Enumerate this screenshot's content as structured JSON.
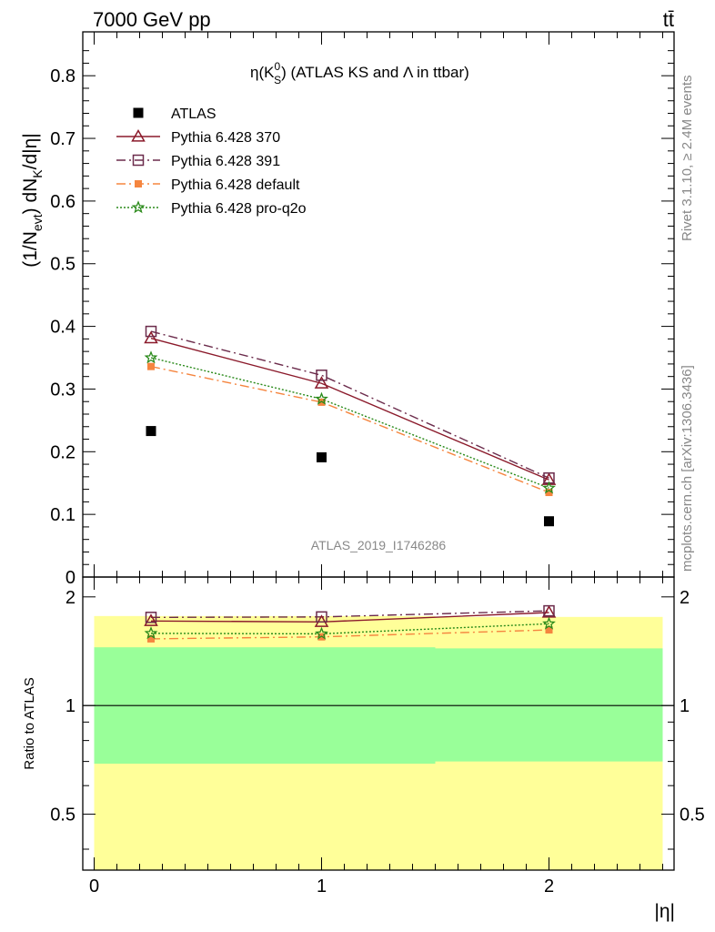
{
  "header": {
    "left_label": "7000 GeV pp",
    "right_label": "tt̄"
  },
  "side_labels": {
    "rivet": "Rivet 3.1.10, ≥ 2.4M events",
    "mcplots": "mcplots.cern.ch [arXiv:1306.3436]"
  },
  "watermark": "ATLAS_2019_I1746286",
  "chart_data": [
    {
      "type": "scatter",
      "title": "η(K⁰S) (ATLAS KS and Λ in ttbar)",
      "title_parts": {
        "main": "η(K",
        "sup": "0",
        "sub": "S",
        "rest": ") (ATLAS KS and Λ in ttbar)"
      },
      "ylabel": "(1/Nevt) dNK/d|η|",
      "ylabel_parts": {
        "a": "(1/N",
        "a_sub": "evt",
        "b": ") dN",
        "b_sub": "K",
        "c": "/d|η|"
      },
      "xlim": [
        -0.05,
        2.55
      ],
      "ylim": [
        0,
        0.87
      ],
      "yticks": [
        0,
        0.1,
        0.2,
        0.3,
        0.4,
        0.5,
        0.6,
        0.7,
        0.8
      ],
      "ytick_labels": [
        "0",
        "0.1",
        "0.2",
        "0.3",
        "0.4",
        "0.5",
        "0.6",
        "0.7",
        "0.8"
      ],
      "legend_position": "top-left",
      "x": [
        0.25,
        1.0,
        2.0
      ],
      "series": [
        {
          "name": "ATLAS",
          "values": [
            0.233,
            0.191,
            0.089
          ],
          "color": "#000000",
          "marker": "square",
          "line": "none"
        },
        {
          "name": "Pythia 6.428 370",
          "values": [
            0.381,
            0.309,
            0.155
          ],
          "color": "#8b1a2b",
          "marker": "triangle",
          "line": "solid"
        },
        {
          "name": "Pythia 6.428 391",
          "values": [
            0.392,
            0.322,
            0.158
          ],
          "color": "#6b2b4b",
          "marker": "open-square",
          "line": "dashdot"
        },
        {
          "name": "Pythia 6.428 default",
          "values": [
            0.336,
            0.279,
            0.135
          ],
          "color": "#f5853f",
          "marker": "filled-square",
          "line": "dashdot"
        },
        {
          "name": "Pythia 6.428 pro-q2o",
          "values": [
            0.35,
            0.284,
            0.142
          ],
          "color": "#2a8a1a",
          "marker": "star",
          "line": "dotted"
        }
      ]
    },
    {
      "type": "scatter",
      "xlabel": "|η|",
      "ylabel": "Ratio to ATLAS",
      "xlim": [
        -0.05,
        2.55
      ],
      "ylim": [
        0.35,
        2.27
      ],
      "xticks": [
        0,
        1,
        2
      ],
      "xtick_labels": [
        "0",
        "1",
        "2"
      ],
      "yticks": [
        0.5,
        1,
        2
      ],
      "ytick_labels": [
        "0.5",
        "1",
        "2"
      ],
      "bands": [
        {
          "x_from": 0.0,
          "x_to": 0.5,
          "yellow_low": 0.35,
          "yellow_high": 1.77,
          "green_low": 0.69,
          "green_high": 1.45
        },
        {
          "x_from": 0.5,
          "x_to": 1.5,
          "yellow_low": 0.35,
          "yellow_high": 1.77,
          "green_low": 0.69,
          "green_high": 1.45
        },
        {
          "x_from": 1.5,
          "x_to": 2.5,
          "yellow_low": 0.35,
          "yellow_high": 1.76,
          "green_low": 0.7,
          "green_high": 1.44
        }
      ],
      "band_colors": {
        "yellow": "#ffff99",
        "green": "#99ff99"
      },
      "x": [
        0.25,
        1.0,
        2.0
      ],
      "series": [
        {
          "name": "Pythia 6.428 370",
          "values": [
            1.715,
            1.705,
            1.81
          ],
          "color": "#8b1a2b",
          "marker": "triangle",
          "line": "solid"
        },
        {
          "name": "Pythia 6.428 391",
          "values": [
            1.755,
            1.76,
            1.83
          ],
          "color": "#6b2b4b",
          "marker": "open-square",
          "line": "dashdot"
        },
        {
          "name": "Pythia 6.428 default",
          "values": [
            1.53,
            1.55,
            1.62
          ],
          "color": "#f5853f",
          "marker": "filled-square",
          "line": "dashdot"
        },
        {
          "name": "Pythia 6.428 pro-q2o",
          "values": [
            1.585,
            1.58,
            1.685
          ],
          "color": "#2a8a1a",
          "marker": "star",
          "line": "dotted"
        }
      ]
    }
  ]
}
